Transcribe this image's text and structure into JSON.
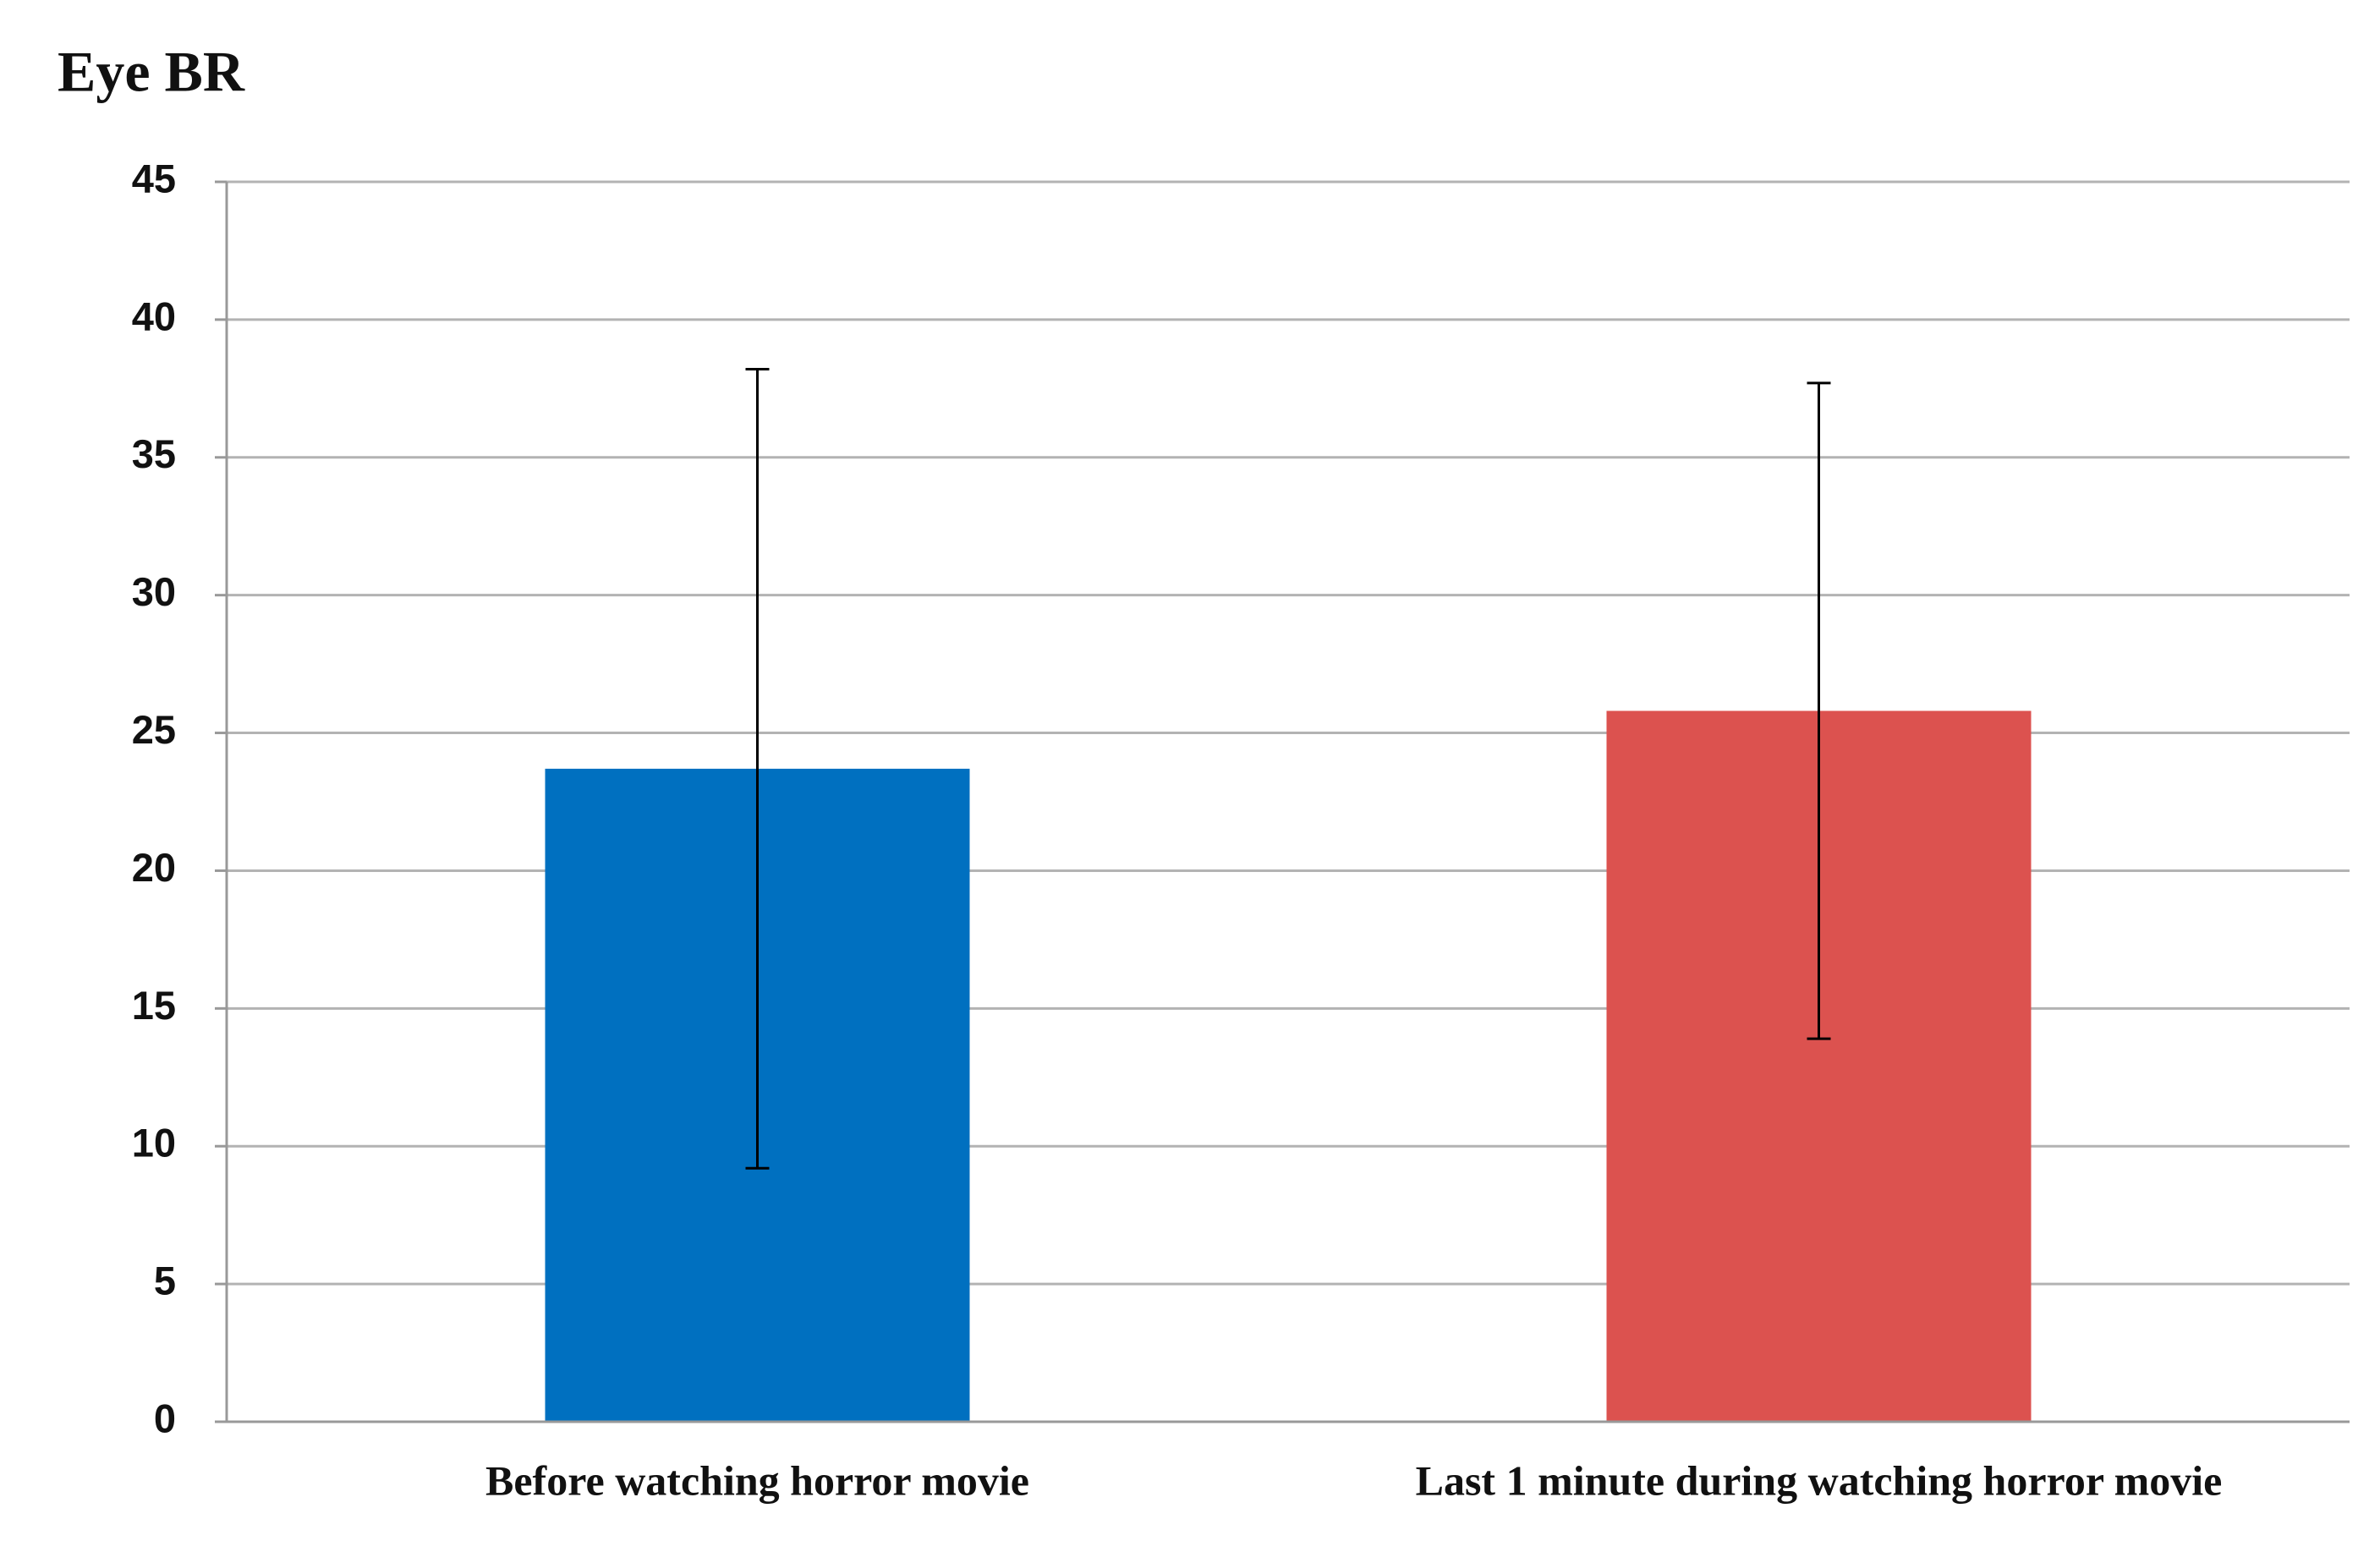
{
  "chart_data": {
    "type": "bar",
    "title": "Eye BR",
    "categories": [
      "Before watching horror  movie",
      "Last 1 minute  during  watching horror  movie"
    ],
    "values": [
      23.7,
      25.8
    ],
    "errors": [
      14.5,
      11.9
    ],
    "colors": [
      "#0070c0",
      "#dc524f"
    ],
    "ylim": [
      0,
      45
    ],
    "yticks": [
      0,
      5,
      10,
      15,
      20,
      25,
      30,
      35,
      40,
      45
    ],
    "grid": true
  }
}
